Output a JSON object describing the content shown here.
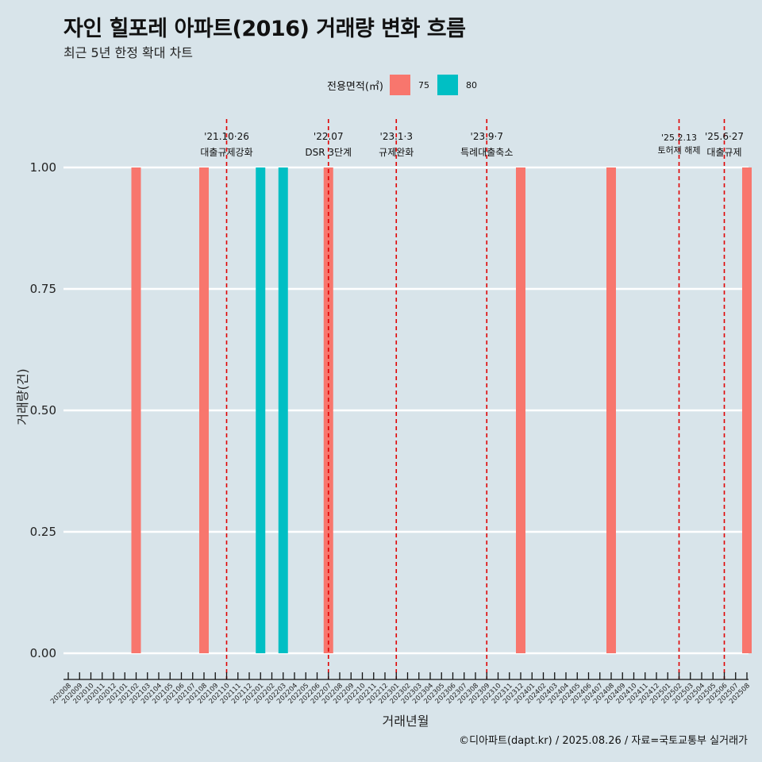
{
  "title": "자인 힐포레 아파트(2016) 거래량 변화 흐름",
  "subtitle": "최근 5년 한정 확대 차트",
  "caption": "©디아파트(dapt.kr) / 2025.08.26 / 자료=국토교통부 실거래가",
  "legend": {
    "title": "전용면적(㎡)",
    "items": [
      {
        "label": "75",
        "color": "#f8766d"
      },
      {
        "label": "80",
        "color": "#00bfc4"
      }
    ]
  },
  "chart_data": {
    "type": "bar",
    "xlabel": "거래년월",
    "ylabel": "거래량(건)",
    "ylim": [
      0,
      1.0
    ],
    "yticks": [
      "0.00",
      "0.25",
      "0.50",
      "0.75",
      "1.00"
    ],
    "grid": true,
    "legend_position": "top",
    "categories": [
      "202008",
      "202009",
      "202010",
      "202011",
      "202012",
      "202101",
      "202102",
      "202103",
      "202104",
      "202105",
      "202106",
      "202107",
      "202108",
      "202109",
      "202110",
      "202111",
      "202112",
      "202201",
      "202202",
      "202203",
      "202204",
      "202205",
      "202206",
      "202207",
      "202208",
      "202209",
      "202210",
      "202211",
      "202212",
      "202301",
      "202302",
      "202303",
      "202304",
      "202305",
      "202306",
      "202307",
      "202308",
      "202309",
      "202310",
      "202311",
      "202312",
      "202401",
      "202402",
      "202403",
      "202404",
      "202405",
      "202406",
      "202407",
      "202408",
      "202409",
      "202410",
      "202411",
      "202412",
      "202501",
      "202502",
      "202503",
      "202504",
      "202505",
      "202506",
      "202507",
      "202508"
    ],
    "series": [
      {
        "name": "75",
        "color": "#f8766d",
        "points": [
          {
            "x": "202102",
            "y": 1
          },
          {
            "x": "202108",
            "y": 1
          },
          {
            "x": "202207",
            "y": 1
          },
          {
            "x": "202312",
            "y": 1
          },
          {
            "x": "202408",
            "y": 1
          },
          {
            "x": "202508",
            "y": 1
          }
        ]
      },
      {
        "name": "80",
        "color": "#00bfc4",
        "points": [
          {
            "x": "202201",
            "y": 1
          },
          {
            "x": "202203",
            "y": 1
          }
        ]
      }
    ],
    "annotations": [
      {
        "x": "202110",
        "date": "'21.10·26",
        "label": "대출규제강화"
      },
      {
        "x": "202207",
        "date": "'22.07",
        "label": "DSR 3단계"
      },
      {
        "x": "202301",
        "date": "'23.1·3",
        "label": "규제완화"
      },
      {
        "x": "202309",
        "date": "'23.9·7",
        "label": "특례대출축소"
      },
      {
        "x": "202502",
        "date": "'25.2.13",
        "label": "토허제 해제"
      },
      {
        "x": "202506",
        "date": "'25.6·27",
        "label": "대출규제"
      }
    ],
    "annotation_color": "#e00000"
  }
}
